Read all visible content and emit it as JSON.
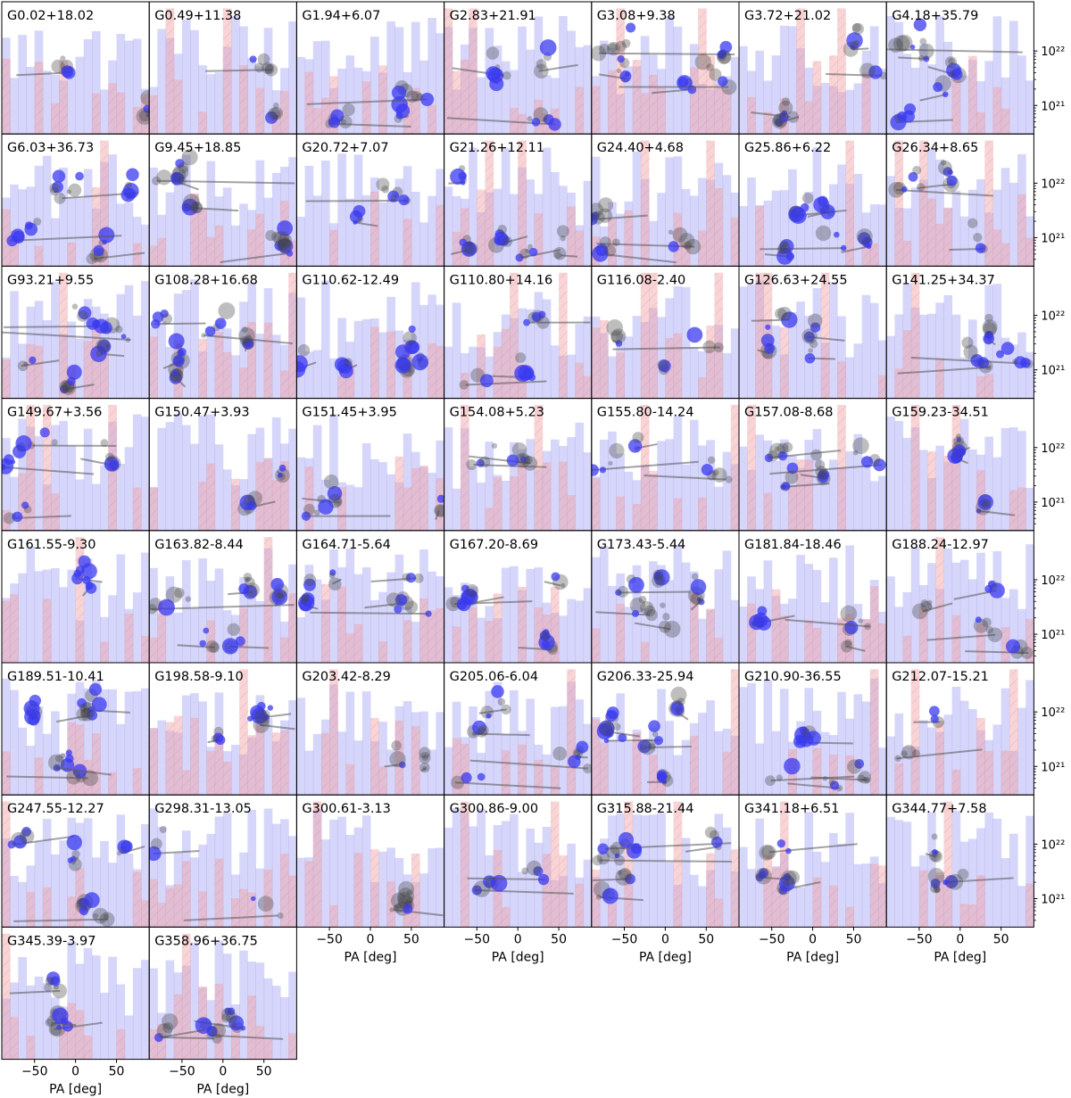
{
  "figure": {
    "xlabel": "PA [deg]",
    "xticks": [
      -50,
      0,
      50
    ],
    "yticks": [
      "10²²",
      "10²¹"
    ],
    "colors": {
      "column_density_hist": "#6a6af0",
      "angle_hist": "#f4a0a0",
      "hatch": "#a0a0d0",
      "track_line": "#555555",
      "marker_gray": "#444444",
      "marker_blue": "#3a3af0",
      "frame": "#000000"
    }
  },
  "chart_data": {
    "type": "scatter",
    "x_axis": {
      "label": "PA [deg]",
      "range": [
        -90,
        90
      ],
      "ticks": [
        -50,
        0,
        50
      ]
    },
    "y_axis": {
      "scale": "log",
      "range": [
        3e+20,
        8e+22
      ],
      "ticks": [
        1e+21,
        1e+22
      ]
    },
    "layout": "small multiples, 7 columns x 8 rows",
    "series_legend": "none",
    "panels": [
      "G0.02+18.02",
      "G0.49+11.38",
      "G1.94+6.07",
      "G2.83+21.91",
      "G3.08+9.38",
      "G3.72+21.02",
      "G4.18+35.79",
      "G6.03+36.73",
      "G9.45+18.85",
      "G20.72+7.07",
      "G21.26+12.11",
      "G24.40+4.68",
      "G25.86+6.22",
      "G26.34+8.65",
      "G93.21+9.55",
      "G108.28+16.68",
      "G110.62-12.49",
      "G110.80+14.16",
      "G116.08-2.40",
      "G126.63+24.55",
      "G141.25+34.37",
      "G149.67+3.56",
      "G150.47+3.93",
      "G151.45+3.95",
      "G154.08+5.23",
      "G155.80-14.24",
      "G157.08-8.68",
      "G159.23-34.51",
      "G161.55-9.30",
      "G163.82-8.44",
      "G164.71-5.64",
      "G167.20-8.69",
      "G173.43-5.44",
      "G181.84-18.46",
      "G188.24-12.97",
      "G189.51-10.41",
      "G198.58-9.10",
      "G203.42-8.29",
      "G205.06-6.04",
      "G206.33-25.94",
      "G210.90-36.55",
      "G212.07-15.21",
      "G247.55-12.27",
      "G298.31-13.05",
      "G300.61-3.13",
      "G300.86-9.00",
      "G315.88-21.44",
      "G341.18+6.51",
      "G344.77+7.58",
      "G345.39-3.97",
      "G358.96+36.75"
    ]
  }
}
